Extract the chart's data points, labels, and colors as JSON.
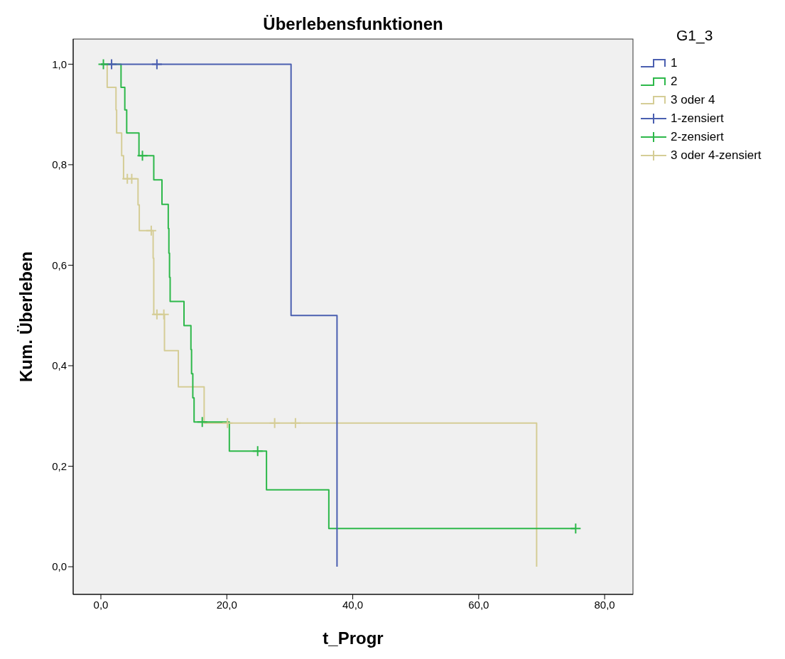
{
  "chart_data": {
    "type": "step",
    "title": "Überlebensfunktionen",
    "xlabel": "t_Progr",
    "ylabel": "Kum. Überleben",
    "legend_title": "G1_3",
    "legend": "right",
    "grid": false,
    "line_style": "solid",
    "xlim": [
      -4.4,
      84.5
    ],
    "xticks": [
      {
        "value": 0,
        "label": "0,0"
      },
      {
        "value": 20,
        "label": "20,0"
      },
      {
        "value": 40,
        "label": "40,0"
      },
      {
        "value": 60,
        "label": "60,0"
      },
      {
        "value": 80,
        "label": "80,0"
      }
    ],
    "ylim": [
      -0.055,
      1.05
    ],
    "yticks": [
      {
        "value": 0,
        "label": "0,0"
      },
      {
        "value": 0.2,
        "label": "0,2"
      },
      {
        "value": 0.4,
        "label": "0,4"
      },
      {
        "value": 0.6,
        "label": "0,6"
      },
      {
        "value": 0.8,
        "label": "0,8"
      },
      {
        "value": 1,
        "label": "1,0"
      }
    ],
    "series": [
      {
        "name": "1",
        "color": "#4a5fb0",
        "x": [
          0,
          30.2,
          37.5
        ],
        "values": [
          1,
          0.5,
          0
        ]
      },
      {
        "name": "2",
        "color": "#2db84a",
        "x": [
          0,
          3.2,
          3.8,
          4.1,
          6.05,
          8.4,
          9.7,
          10.7,
          10.8,
          10.9,
          11.0,
          13.2,
          14.3,
          14.4,
          14.6,
          14.8,
          20.4,
          26.3,
          36.2,
          75.4
        ],
        "values": [
          1,
          0.954,
          0.909,
          0.863,
          0.818,
          0.77,
          0.721,
          0.673,
          0.624,
          0.576,
          0.528,
          0.48,
          0.432,
          0.384,
          0.336,
          0.288,
          0.23,
          0.153,
          0.076,
          0.076
        ]
      },
      {
        "name": "3 oder 4",
        "color": "#d5cd96",
        "x": [
          0,
          1.0,
          2.4,
          2.5,
          3.3,
          3.6,
          5.9,
          6.1,
          8.3,
          8.4,
          10.1,
          12.3,
          16.4,
          69.2
        ],
        "values": [
          1,
          0.954,
          0.909,
          0.863,
          0.818,
          0.772,
          0.72,
          0.669,
          0.614,
          0.502,
          0.43,
          0.358,
          0.286,
          0
        ]
      },
      {
        "name": "1-zensiert",
        "type": "scatter",
        "marker": "cross",
        "color": "#4a5fb0",
        "x": [
          1.7,
          8.9
        ],
        "values": [
          1,
          1
        ]
      },
      {
        "name": "2-zensiert",
        "type": "scatter",
        "marker": "cross",
        "color": "#2db84a",
        "x": [
          0.4,
          6.6,
          16.1,
          24.9,
          75.4
        ],
        "values": [
          1,
          0.818,
          0.288,
          0.23,
          0.076
        ]
      },
      {
        "name": "3 oder 4-zensiert",
        "type": "scatter",
        "marker": "cross",
        "color": "#d5cd96",
        "x": [
          4.2,
          4.9,
          8.0,
          8.9,
          10.0,
          20.1,
          27.6,
          30.9
        ],
        "values": [
          0.772,
          0.772,
          0.669,
          0.502,
          0.502,
          0.286,
          0.286,
          0.286
        ]
      }
    ]
  }
}
